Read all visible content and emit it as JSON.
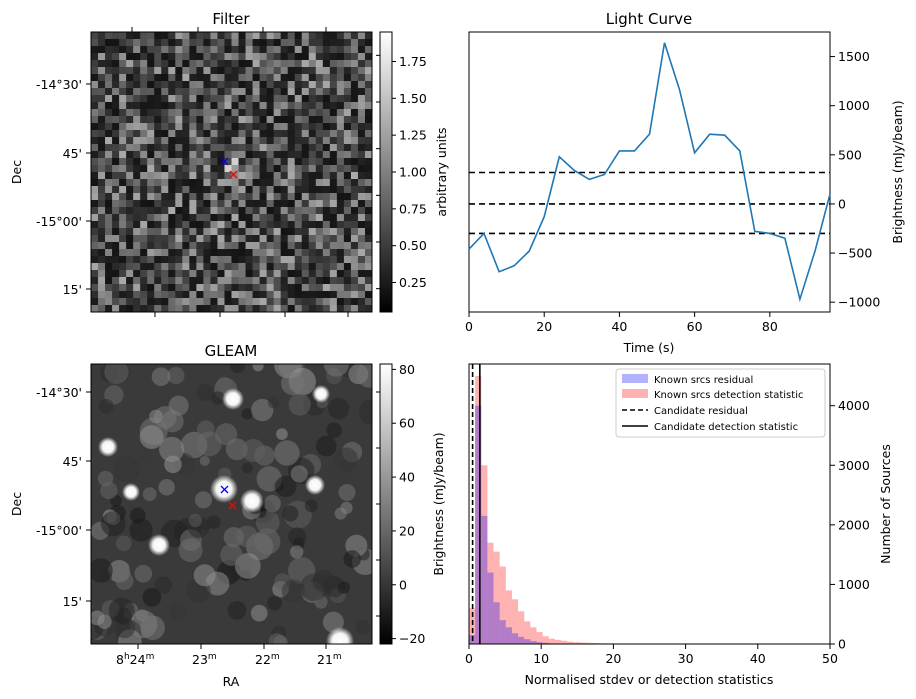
{
  "panels": {
    "filter": {
      "title": "Filter",
      "ylabel": "Dec",
      "dec_ticks": [
        "-14°30'",
        "45'",
        "-15°00'",
        "15'"
      ],
      "colorbar": {
        "label": "arbitrary units",
        "range": [
          0.05,
          1.95
        ],
        "ticks": [
          "0.25",
          "0.50",
          "0.75",
          "1.00",
          "1.25",
          "1.50",
          "1.75"
        ],
        "tick_values": [
          0.25,
          0.5,
          0.75,
          1.0,
          1.25,
          1.5,
          1.75
        ]
      }
    },
    "gleam": {
      "title": "GLEAM",
      "ylabel": "Dec",
      "xlabel": "RA",
      "dec_ticks": [
        "-14°30'",
        "45'",
        "-15°00'",
        "15'"
      ],
      "ra_ticks": {
        "major": "8",
        "h": "h",
        "m1": "24",
        "m": "m",
        "others": [
          "23",
          "22",
          "21"
        ]
      },
      "colorbar": {
        "label": "Brightness (mJy/beam)",
        "range": [
          -22,
          82
        ],
        "ticks": [
          "−20",
          "0",
          "20",
          "40",
          "60",
          "80"
        ],
        "tick_values": [
          -20,
          0,
          20,
          40,
          60,
          80
        ]
      }
    }
  },
  "colors": {
    "known_residual": "#0000ff",
    "known_detection": "#ff0000",
    "line": "#1f77b4"
  },
  "chart_data": [
    {
      "type": "line",
      "title": "Light Curve",
      "xlabel": "Time (s)",
      "ylabel": "Brightness (mJy/beam)",
      "xlim": [
        0,
        96
      ],
      "ylim": [
        -1100,
        1750
      ],
      "xticks": [
        0,
        20,
        40,
        60,
        80
      ],
      "yticks": [
        -1000,
        -500,
        0,
        500,
        1000,
        1500
      ],
      "ytick_labels": [
        "−1000",
        "−500",
        "0",
        "500",
        "1000",
        "1500"
      ],
      "x": [
        0,
        4,
        8,
        12,
        16,
        20,
        24,
        28,
        32,
        36,
        40,
        44,
        48,
        52,
        56,
        60,
        64,
        68,
        72,
        76,
        80,
        84,
        88,
        92,
        96
      ],
      "y": [
        -460,
        -300,
        -690,
        -630,
        -480,
        -130,
        480,
        340,
        250,
        300,
        540,
        540,
        710,
        1640,
        1160,
        520,
        710,
        700,
        540,
        -280,
        -300,
        -350,
        -970,
        -480,
        100
      ],
      "hlines": [
        -300,
        0,
        320
      ]
    },
    {
      "type": "bar",
      "xlabel": "Normalised stdev or detection statistics",
      "ylabel_left": "Brightness (mJy/beam)",
      "ylabel_right": "Number of Sources",
      "xlim": [
        0,
        50
      ],
      "ylim": [
        0,
        4700
      ],
      "xticks": [
        0,
        10,
        20,
        30,
        40,
        50
      ],
      "yticks": [
        0,
        1000,
        2000,
        3000,
        4000
      ],
      "bin_width": 0.85,
      "series": [
        {
          "name": "Known srcs residual",
          "values": [
            150,
            4000,
            2150,
            1200,
            700,
            400,
            280,
            180,
            120,
            80,
            50,
            30,
            20,
            10,
            5
          ]
        },
        {
          "name": "Known srcs detection statistic",
          "values": [
            600,
            4500,
            3000,
            1700,
            1550,
            1300,
            900,
            750,
            550,
            380,
            280,
            200,
            130,
            90,
            70,
            55,
            40,
            30,
            25,
            20,
            16,
            12,
            10,
            8,
            6,
            5,
            5,
            4,
            4,
            3,
            3,
            2,
            2,
            2,
            2,
            1,
            1,
            1,
            1,
            1,
            1,
            1,
            1,
            1,
            1
          ]
        }
      ],
      "vlines": [
        {
          "name": "Candidate residual",
          "x": 0.5,
          "style": "dashed"
        },
        {
          "name": "Candidate detection statistic",
          "x": 1.5,
          "style": "solid"
        }
      ]
    }
  ]
}
